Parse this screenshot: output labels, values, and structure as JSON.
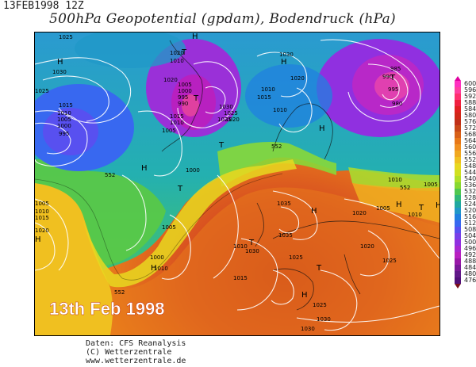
{
  "header": {
    "date": "13FEB1998 12Z",
    "title": "500hPa Geopotential (gpdam), Bodendruck (hPa)"
  },
  "map": {
    "overlay_text": "13th Feb 1998",
    "pressure_labels": [
      "1025",
      "1030",
      "1025",
      "1015",
      "1010",
      "1005",
      "1000",
      "995",
      "1020",
      "1010",
      "1005",
      "1000",
      "995",
      "990",
      "1020",
      "1015",
      "1010",
      "1005",
      "1030",
      "1025",
      "1020",
      "1015",
      "1010",
      "1025",
      "1010",
      "995",
      "990",
      "985",
      "980",
      "1020",
      "1030",
      "1000",
      "1005",
      "1010",
      "1015",
      "1020",
      "1005",
      "1000",
      "1010",
      "1030",
      "1035",
      "1035",
      "1025",
      "1020",
      "1010",
      "1005",
      "1005",
      "1010",
      "1025",
      "1030",
      "1030",
      "1015",
      "1020",
      "1025",
      "1010"
    ],
    "geopotential_labels": [
      "552",
      "552",
      "552",
      "552"
    ],
    "high_marks": [
      "H",
      "H",
      "H",
      "H",
      "H",
      "H",
      "H",
      "H",
      "H",
      "H",
      "H"
    ],
    "low_marks": [
      "T",
      "T",
      "T",
      "T",
      "T",
      "T",
      "T",
      "T"
    ]
  },
  "legend": {
    "values": [
      "600",
      "596",
      "592",
      "588",
      "584",
      "580",
      "576",
      "572",
      "568",
      "564",
      "560",
      "556",
      "552",
      "548",
      "544",
      "540",
      "536",
      "532",
      "528",
      "524",
      "520",
      "516",
      "512",
      "508",
      "504",
      "500",
      "496",
      "492",
      "488",
      "484",
      "480",
      "476"
    ],
    "colors": [
      "#ff30c0",
      "#ff40a0",
      "#ff3070",
      "#f02040",
      "#e02020",
      "#d02818",
      "#c03018",
      "#c84818",
      "#d86018",
      "#e87818",
      "#f09020",
      "#f0a820",
      "#f0c020",
      "#e8d820",
      "#d0e020",
      "#b0e028",
      "#88d830",
      "#50c850",
      "#30b878",
      "#20a8a0",
      "#2098c8",
      "#2080e0",
      "#3868f0",
      "#5850f0",
      "#7840e8",
      "#9030e0",
      "#a828d0",
      "#b820c0",
      "#9818a8",
      "#781898",
      "#601888",
      "#501078"
    ],
    "arrow_top_color": "#e000a0",
    "arrow_bottom_color": "#7a1018"
  },
  "credits": {
    "line1": "Daten: CFS Reanalysis",
    "line2": "(C) Wetterzentrale",
    "line3": "www.wetterzentrale.de"
  }
}
